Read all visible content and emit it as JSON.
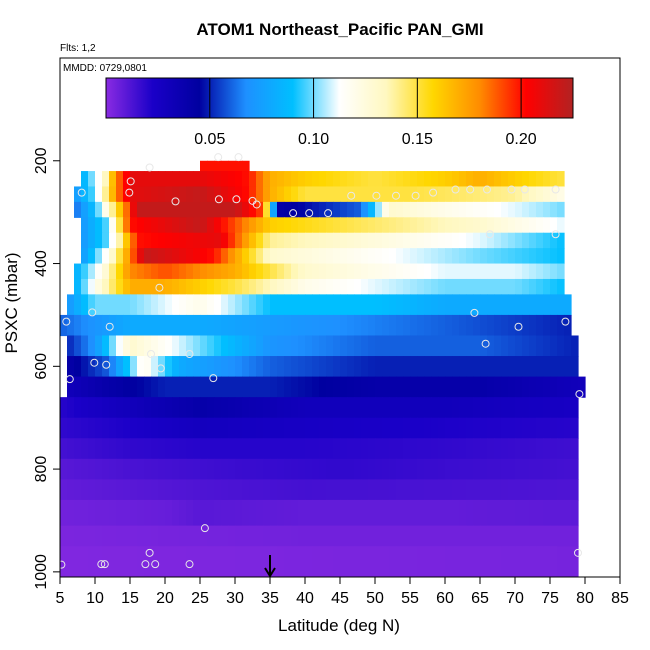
{
  "chart_data": {
    "type": "heatmap",
    "title": "ATOM1 Northeast_Pacific PAN_GMI",
    "flights_label": "Flts: 1,2",
    "date_label": "MMDD: 0729,0801",
    "xlabel": "Latitude (deg N)",
    "ylabel": "PSXC (mbar)",
    "xlim": [
      5,
      85
    ],
    "ylim": [
      1010,
      0
    ],
    "x_ticks": [
      5,
      10,
      15,
      20,
      25,
      30,
      35,
      40,
      45,
      50,
      55,
      60,
      65,
      70,
      75,
      80,
      85
    ],
    "y_ticks": [
      200,
      400,
      600,
      800,
      1000
    ],
    "colorbar": {
      "range": [
        0,
        0.225
      ],
      "ticks": [
        0.05,
        0.1,
        0.15,
        0.2
      ],
      "tick_labels": [
        "0.05",
        "0.10",
        "0.15",
        "0.20"
      ],
      "colors": [
        "#8a2be2",
        "#1a00c8",
        "#0000a0",
        "#1e90ff",
        "#00bfff",
        "#ffffff",
        "#fff8c0",
        "#ffd700",
        "#ff8c00",
        "#ff0000",
        "#b22222"
      ]
    },
    "marker_latitude": 35,
    "layers": [
      {
        "p_top": 200,
        "p_bot": 220,
        "lat_min": 25,
        "lat_max": 32,
        "profile": [
          [
            25,
            0.2
          ],
          [
            32,
            0.2
          ]
        ]
      },
      {
        "p_top": 220,
        "p_bot": 250,
        "lat_min": 8,
        "lat_max": 77,
        "profile": [
          [
            8,
            0.08
          ],
          [
            11,
            0.12
          ],
          [
            13,
            0.18
          ],
          [
            15,
            0.21
          ],
          [
            25,
            0.21
          ],
          [
            32,
            0.2
          ],
          [
            35,
            0.17
          ],
          [
            40,
            0.16
          ],
          [
            50,
            0.15
          ],
          [
            60,
            0.16
          ],
          [
            65,
            0.17
          ],
          [
            70,
            0.16
          ],
          [
            77,
            0.15
          ]
        ]
      },
      {
        "p_top": 250,
        "p_bot": 280,
        "lat_min": 7,
        "lat_max": 77,
        "profile": [
          [
            7,
            0.07
          ],
          [
            10,
            0.1
          ],
          [
            13,
            0.18
          ],
          [
            15,
            0.21
          ],
          [
            25,
            0.22
          ],
          [
            32,
            0.2
          ],
          [
            35,
            0.17
          ],
          [
            40,
            0.15
          ],
          [
            55,
            0.15
          ],
          [
            70,
            0.14
          ],
          [
            77,
            0.12
          ]
        ]
      },
      {
        "p_top": 280,
        "p_bot": 310,
        "lat_min": 7,
        "lat_max": 77,
        "profile": [
          [
            7,
            0.06
          ],
          [
            10,
            0.09
          ],
          [
            13,
            0.15
          ],
          [
            16,
            0.22
          ],
          [
            30,
            0.22
          ],
          [
            34,
            0.19
          ],
          [
            36,
            0.04
          ],
          [
            48,
            0.06
          ],
          [
            52,
            0.13
          ],
          [
            60,
            0.12
          ],
          [
            70,
            0.11
          ],
          [
            77,
            0.1
          ]
        ]
      },
      {
        "p_top": 310,
        "p_bot": 340,
        "lat_min": 8,
        "lat_max": 77,
        "profile": [
          [
            8,
            0.07
          ],
          [
            12,
            0.1
          ],
          [
            15,
            0.2
          ],
          [
            25,
            0.22
          ],
          [
            35,
            0.16
          ],
          [
            45,
            0.15
          ],
          [
            55,
            0.14
          ],
          [
            65,
            0.13
          ],
          [
            77,
            0.11
          ]
        ]
      },
      {
        "p_top": 340,
        "p_bot": 370,
        "lat_min": 8,
        "lat_max": 77,
        "profile": [
          [
            8,
            0.07
          ],
          [
            12,
            0.1
          ],
          [
            16,
            0.2
          ],
          [
            28,
            0.21
          ],
          [
            35,
            0.14
          ],
          [
            45,
            0.13
          ],
          [
            55,
            0.12
          ],
          [
            65,
            0.11
          ],
          [
            77,
            0.09
          ]
        ]
      },
      {
        "p_top": 370,
        "p_bot": 400,
        "lat_min": 8,
        "lat_max": 77,
        "profile": [
          [
            8,
            0.07
          ],
          [
            12,
            0.12
          ],
          [
            17,
            0.22
          ],
          [
            27,
            0.2
          ],
          [
            35,
            0.13
          ],
          [
            45,
            0.12
          ],
          [
            55,
            0.11
          ],
          [
            65,
            0.1
          ],
          [
            77,
            0.09
          ]
        ]
      },
      {
        "p_top": 400,
        "p_bot": 430,
        "lat_min": 7,
        "lat_max": 77,
        "profile": [
          [
            7,
            0.08
          ],
          [
            11,
            0.12
          ],
          [
            15,
            0.18
          ],
          [
            20,
            0.19
          ],
          [
            30,
            0.17
          ],
          [
            40,
            0.13
          ],
          [
            50,
            0.12
          ],
          [
            60,
            0.11
          ],
          [
            70,
            0.11
          ],
          [
            77,
            0.1
          ]
        ]
      },
      {
        "p_top": 430,
        "p_bot": 460,
        "lat_min": 7,
        "lat_max": 77,
        "profile": [
          [
            7,
            0.08
          ],
          [
            11,
            0.13
          ],
          [
            15,
            0.17
          ],
          [
            20,
            0.17
          ],
          [
            30,
            0.15
          ],
          [
            40,
            0.12
          ],
          [
            50,
            0.11
          ],
          [
            60,
            0.1
          ],
          [
            70,
            0.1
          ],
          [
            77,
            0.09
          ]
        ]
      },
      {
        "p_top": 460,
        "p_bot": 500,
        "lat_min": 6,
        "lat_max": 78,
        "profile": [
          [
            6,
            0.07
          ],
          [
            10,
            0.1
          ],
          [
            15,
            0.1
          ],
          [
            25,
            0.12
          ],
          [
            35,
            0.09
          ],
          [
            50,
            0.09
          ],
          [
            60,
            0.08
          ],
          [
            78,
            0.08
          ]
        ]
      },
      {
        "p_top": 500,
        "p_bot": 540,
        "lat_min": 5,
        "lat_max": 78,
        "profile": [
          [
            5,
            0.06
          ],
          [
            10,
            0.07
          ],
          [
            15,
            0.08
          ],
          [
            25,
            0.08
          ],
          [
            40,
            0.07
          ],
          [
            60,
            0.06
          ],
          [
            78,
            0.05
          ]
        ]
      },
      {
        "p_top": 540,
        "p_bot": 580,
        "lat_min": 6,
        "lat_max": 79,
        "profile": [
          [
            6,
            0.05
          ],
          [
            10,
            0.07
          ],
          [
            15,
            0.13
          ],
          [
            25,
            0.1
          ],
          [
            35,
            0.07
          ],
          [
            50,
            0.06
          ],
          [
            65,
            0.06
          ],
          [
            79,
            0.05
          ]
        ]
      },
      {
        "p_top": 580,
        "p_bot": 620,
        "lat_min": 6,
        "lat_max": 79,
        "profile": [
          [
            6,
            0.04
          ],
          [
            12,
            0.06
          ],
          [
            17,
            0.12
          ],
          [
            22,
            0.08
          ],
          [
            35,
            0.06
          ],
          [
            50,
            0.05
          ],
          [
            65,
            0.05
          ],
          [
            79,
            0.05
          ]
        ]
      },
      {
        "p_top": 620,
        "p_bot": 660,
        "lat_min": 6,
        "lat_max": 80,
        "profile": [
          [
            6,
            0.03
          ],
          [
            12,
            0.04
          ],
          [
            20,
            0.05
          ],
          [
            35,
            0.05
          ],
          [
            50,
            0.04
          ],
          [
            65,
            0.04
          ],
          [
            80,
            0.03
          ]
        ]
      },
      {
        "p_top": 660,
        "p_bot": 700,
        "lat_min": 5,
        "lat_max": 79,
        "profile": [
          [
            5,
            0.02
          ],
          [
            15,
            0.03
          ],
          [
            25,
            0.04
          ],
          [
            40,
            0.03
          ],
          [
            60,
            0.03
          ],
          [
            79,
            0.025
          ]
        ]
      },
      {
        "p_top": 700,
        "p_bot": 740,
        "lat_min": 5,
        "lat_max": 79,
        "profile": [
          [
            5,
            0.018
          ],
          [
            15,
            0.022
          ],
          [
            25,
            0.028
          ],
          [
            40,
            0.025
          ],
          [
            60,
            0.022
          ],
          [
            79,
            0.02
          ]
        ]
      },
      {
        "p_top": 740,
        "p_bot": 780,
        "lat_min": 5,
        "lat_max": 79,
        "profile": [
          [
            5,
            0.014
          ],
          [
            15,
            0.018
          ],
          [
            25,
            0.02
          ],
          [
            40,
            0.02
          ],
          [
            60,
            0.018
          ],
          [
            79,
            0.015
          ]
        ]
      },
      {
        "p_top": 780,
        "p_bot": 820,
        "lat_min": 5,
        "lat_max": 79,
        "profile": [
          [
            5,
            0.01
          ],
          [
            15,
            0.013
          ],
          [
            30,
            0.016
          ],
          [
            45,
            0.018
          ],
          [
            60,
            0.016
          ],
          [
            79,
            0.014
          ]
        ]
      },
      {
        "p_top": 820,
        "p_bot": 860,
        "lat_min": 5,
        "lat_max": 79,
        "profile": [
          [
            5,
            0.008
          ],
          [
            15,
            0.01
          ],
          [
            25,
            0.012
          ],
          [
            40,
            0.014
          ],
          [
            60,
            0.013
          ],
          [
            79,
            0.012
          ]
        ]
      },
      {
        "p_top": 860,
        "p_bot": 910,
        "lat_min": 5,
        "lat_max": 79,
        "profile": [
          [
            5,
            0.005
          ],
          [
            20,
            0.007
          ],
          [
            25,
            0.01
          ],
          [
            40,
            0.008
          ],
          [
            60,
            0.008
          ],
          [
            79,
            0.009
          ]
        ]
      },
      {
        "p_top": 910,
        "p_bot": 950,
        "lat_min": 5,
        "lat_max": 79,
        "profile": [
          [
            5,
            0.003
          ],
          [
            20,
            0.004
          ],
          [
            40,
            0.005
          ],
          [
            60,
            0.005
          ],
          [
            79,
            0.005
          ]
        ]
      },
      {
        "p_top": 950,
        "p_bot": 1010,
        "lat_min": 5,
        "lat_max": 79,
        "profile": [
          [
            5,
            0.002
          ],
          [
            40,
            0.003
          ],
          [
            79,
            0.004
          ]
        ]
      }
    ],
    "sample_points": [
      [
        27.6,
        193
      ],
      [
        30.5,
        193
      ],
      [
        17.8,
        213
      ],
      [
        15.1,
        240
      ],
      [
        14.9,
        262
      ],
      [
        8.1,
        262
      ],
      [
        27.7,
        275
      ],
      [
        30.2,
        275
      ],
      [
        21.5,
        279
      ],
      [
        32.5,
        278
      ],
      [
        33.1,
        285
      ],
      [
        38.3,
        302
      ],
      [
        40.6,
        302
      ],
      [
        43.3,
        302
      ],
      [
        46.6,
        268
      ],
      [
        50.2,
        268
      ],
      [
        53.0,
        268
      ],
      [
        55.8,
        268
      ],
      [
        58.3,
        262
      ],
      [
        61.5,
        256
      ],
      [
        63.6,
        256
      ],
      [
        66.0,
        256
      ],
      [
        69.5,
        256
      ],
      [
        71.4,
        256
      ],
      [
        75.8,
        256
      ],
      [
        66.4,
        343
      ],
      [
        75.8,
        343
      ],
      [
        19.2,
        447
      ],
      [
        9.6,
        495
      ],
      [
        64.2,
        496
      ],
      [
        5.9,
        513
      ],
      [
        77.2,
        513
      ],
      [
        12.1,
        523
      ],
      [
        70.5,
        523
      ],
      [
        65.8,
        556
      ],
      [
        18.0,
        576
      ],
      [
        23.5,
        576
      ],
      [
        11.6,
        597
      ],
      [
        9.9,
        593
      ],
      [
        19.4,
        604
      ],
      [
        6.4,
        625
      ],
      [
        26.9,
        623
      ],
      [
        79.2,
        654
      ],
      [
        25.7,
        915
      ],
      [
        17.8,
        963
      ],
      [
        11.4,
        985
      ],
      [
        10.9,
        985
      ],
      [
        17.2,
        985
      ],
      [
        18.6,
        985
      ],
      [
        23.5,
        985
      ],
      [
        5.2,
        986
      ],
      [
        79.0,
        963
      ]
    ]
  }
}
